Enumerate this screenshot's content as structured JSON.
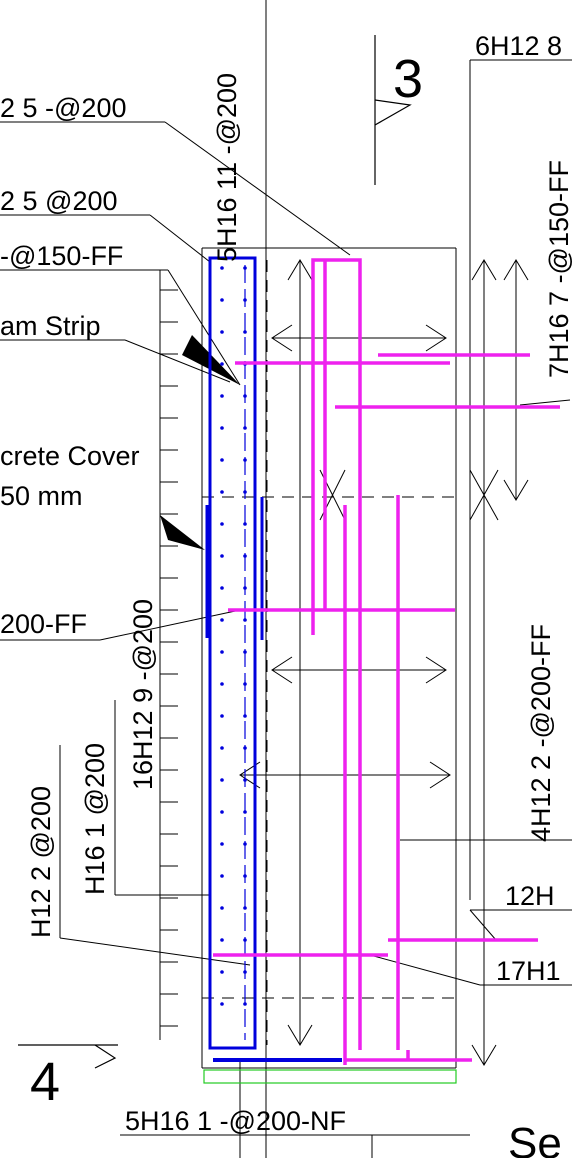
{
  "drawing": {
    "colors": {
      "background": "#ffffff",
      "linework": "#000000",
      "rebar_blue": "#0000dd",
      "rebar_magenta": "#ee22ee",
      "cover_line": "#22cc22"
    },
    "section_marks": {
      "top": "3",
      "bottom": "4"
    },
    "labels": {
      "top_left_1": "2 5 -@200",
      "top_left_2": "2 5 @200",
      "top_left_3": "-@150-FF",
      "beam_strip": "am Strip",
      "concrete_cover": "crete Cover",
      "cover_value": "50 mm",
      "left_ff": "200-FF",
      "vert_5h16_11": "5H16 11 -@200",
      "vert_16h12_9": "16H12 9 -@200",
      "vert_h16_1": "H16 1 @200",
      "vert_h12_2": "H12 2 @200",
      "top_right_6h12": "6H12 8",
      "vert_7h16_7": "7H16 7 -@150-FF",
      "vert_4h12_2": "4H12 2 -@200-FF",
      "right_12h": "12H",
      "right_17h1": "17H1",
      "bottom_5h16": "5H16 1 -@200-NF",
      "bottom_right_partial": "Se"
    }
  }
}
